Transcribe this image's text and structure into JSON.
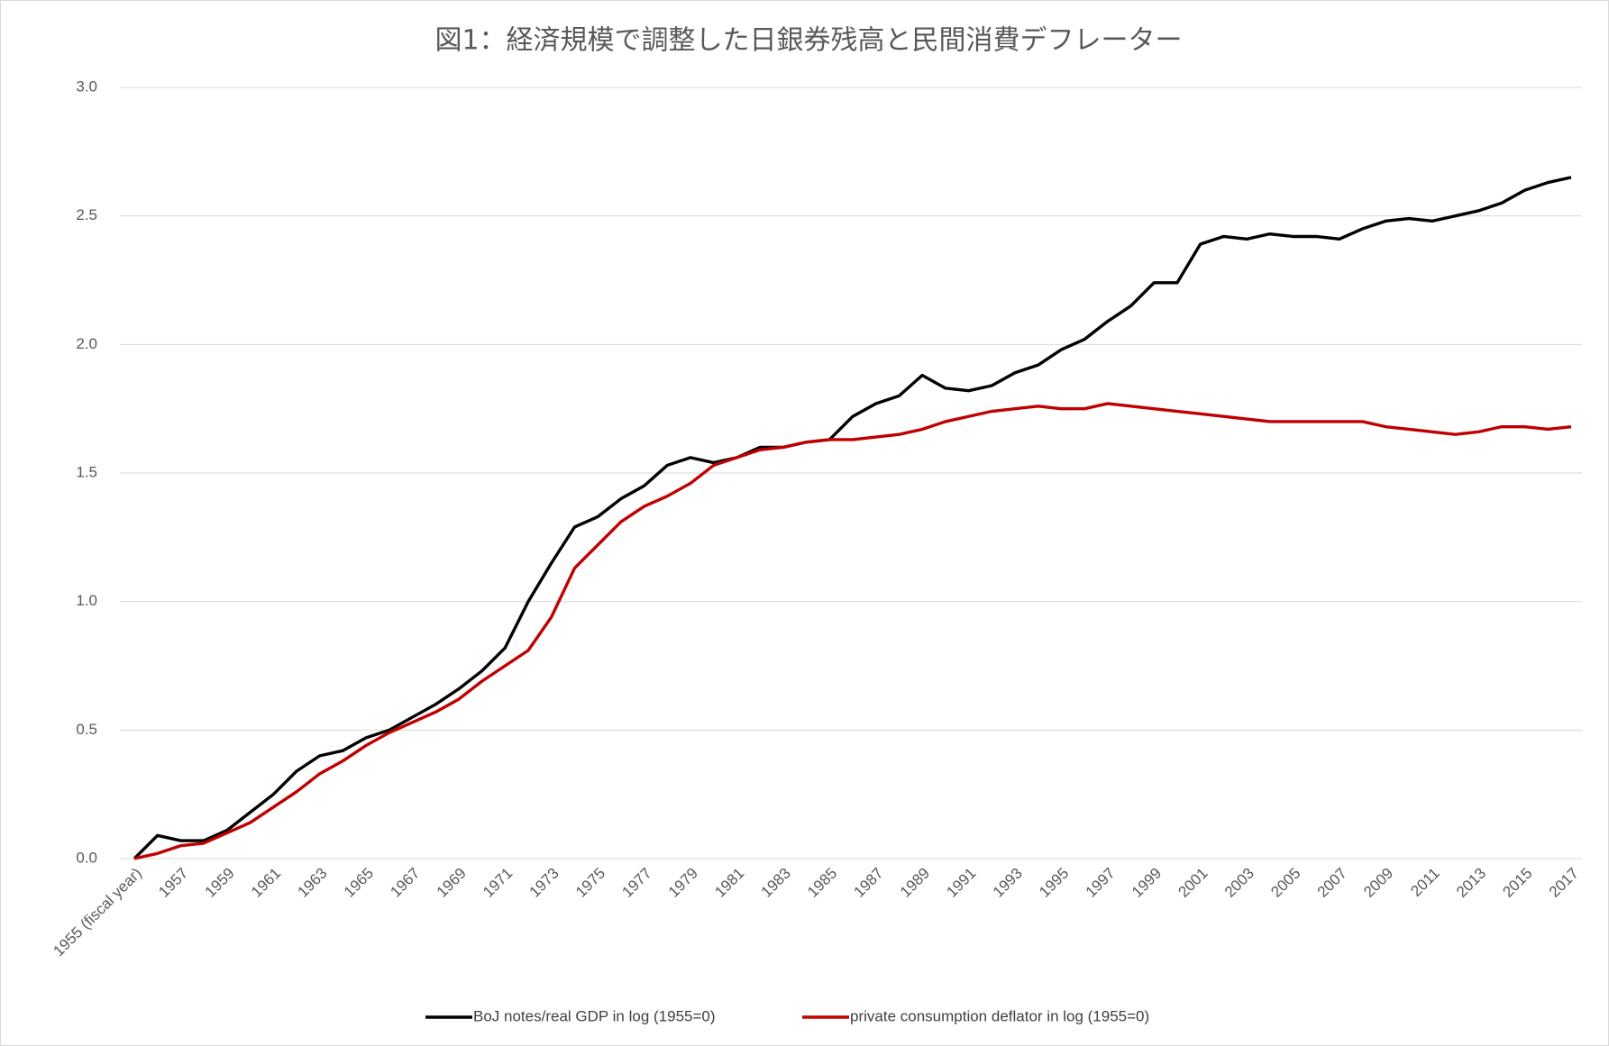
{
  "chart_data": {
    "type": "line",
    "title": "図1：経済規模で調整した日銀券残高と民間消費デフレーター",
    "categories": [
      "1955 (fiscal year)",
      null,
      "1957",
      null,
      "1959",
      null,
      "1961",
      null,
      "1963",
      null,
      "1965",
      null,
      "1967",
      null,
      "1969",
      null,
      "1971",
      null,
      "1973",
      null,
      "1975",
      null,
      "1977",
      null,
      "1979",
      null,
      "1981",
      null,
      "1983",
      null,
      "1985",
      null,
      "1987",
      null,
      "1989",
      null,
      "1991",
      null,
      "1993",
      null,
      "1995",
      null,
      "1997",
      null,
      "1999",
      null,
      "2001",
      null,
      "2003",
      null,
      "2005",
      null,
      "2007",
      null,
      "2009",
      null,
      "2011",
      null,
      "2013",
      null,
      "2015",
      null,
      "2017"
    ],
    "series": [
      {
        "name": "BoJ notes/real GDP in log (1955=0)",
        "color": "#000000",
        "values": [
          0,
          0.09,
          0.07,
          0.07,
          0.11,
          0.18,
          0.25,
          0.34,
          0.4,
          0.42,
          0.47,
          0.5,
          0.55,
          0.6,
          0.66,
          0.73,
          0.82,
          1.0,
          1.15,
          1.29,
          1.33,
          1.4,
          1.45,
          1.53,
          1.56,
          1.54,
          1.56,
          1.6,
          1.6,
          1.62,
          1.63,
          1.72,
          1.77,
          1.8,
          1.88,
          1.83,
          1.82,
          1.84,
          1.89,
          1.92,
          1.98,
          2.02,
          2.09,
          2.15,
          2.24,
          2.24,
          2.39,
          2.42,
          2.41,
          2.43,
          2.42,
          2.42,
          2.41,
          2.45,
          2.48,
          2.49,
          2.48,
          2.5,
          2.52,
          2.55,
          2.6,
          2.63,
          2.65
        ]
      },
      {
        "name": "private consumption deflator in log (1955=0)",
        "color": "#c00000",
        "values": [
          0,
          0.02,
          0.05,
          0.06,
          0.1,
          0.14,
          0.2,
          0.26,
          0.33,
          0.38,
          0.44,
          0.49,
          0.53,
          0.57,
          0.62,
          0.69,
          0.75,
          0.81,
          0.94,
          1.13,
          1.22,
          1.31,
          1.37,
          1.41,
          1.46,
          1.53,
          1.56,
          1.59,
          1.6,
          1.62,
          1.63,
          1.63,
          1.64,
          1.65,
          1.67,
          1.7,
          1.72,
          1.74,
          1.75,
          1.76,
          1.75,
          1.75,
          1.77,
          1.76,
          1.75,
          1.74,
          1.73,
          1.72,
          1.71,
          1.7,
          1.7,
          1.7,
          1.7,
          1.7,
          1.68,
          1.67,
          1.66,
          1.65,
          1.66,
          1.68,
          1.68,
          1.67,
          1.68
        ]
      }
    ],
    "ylim": [
      0,
      3
    ],
    "yticks": [
      {
        "value": 0,
        "label": "0.0"
      },
      0.5,
      {
        "value": 1,
        "label": "1.0"
      },
      1.5,
      {
        "value": 2,
        "label": "2.0"
      },
      2.5,
      {
        "value": 3,
        "label": "3.0"
      }
    ],
    "grid": true,
    "legend": "bottom"
  }
}
